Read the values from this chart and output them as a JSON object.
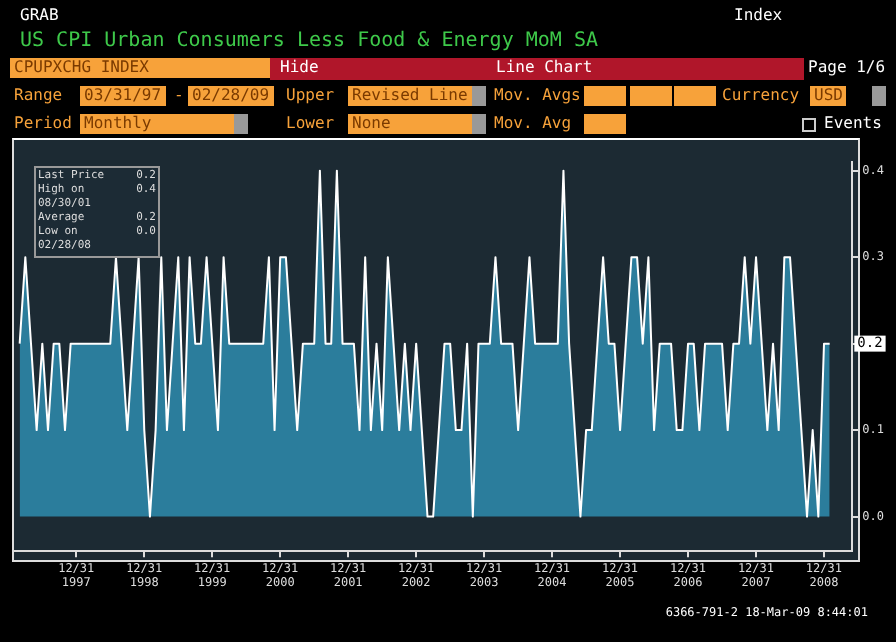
{
  "chart_data": {
    "type": "area",
    "title": "US CPI Urban Consumers Less Food & Energy MoM SA",
    "annotations": [
      "GRAB",
      "Index",
      "CPUPXCHG INDEX",
      "Hide",
      "Line Chart",
      "Page 1/6",
      "Range",
      "03/31/97",
      "-",
      "02/28/09",
      "Upper",
      "Revised Line",
      "Mov. Avgs",
      "Currency",
      "USD",
      "Period",
      "Monthly",
      "Lower",
      "None",
      "Mov. Avg",
      "Events",
      "Last Price",
      "0.2",
      "High on 08/30/01",
      "0.4",
      "Average",
      "0.2",
      "Low on 02/28/08",
      "0.0",
      "6366-791-2 18-Mar-09 8:44:01",
      "0.2"
    ],
    "x": [
      "1997-03",
      "1997-04",
      "1997-05",
      "1997-06",
      "1997-07",
      "1997-08",
      "1997-09",
      "1997-10",
      "1997-11",
      "1997-12",
      "1998-01",
      "1998-02",
      "1998-03",
      "1998-04",
      "1998-05",
      "1998-06",
      "1998-07",
      "1998-08",
      "1998-09",
      "1998-10",
      "1998-11",
      "1998-12",
      "1999-01",
      "1999-02",
      "1999-03",
      "1999-04",
      "1999-05",
      "1999-06",
      "1999-07",
      "1999-08",
      "1999-09",
      "1999-10",
      "1999-11",
      "1999-12",
      "2000-01",
      "2000-02",
      "2000-03",
      "2000-04",
      "2000-05",
      "2000-06",
      "2000-07",
      "2000-08",
      "2000-09",
      "2000-10",
      "2000-11",
      "2000-12",
      "2001-01",
      "2001-02",
      "2001-03",
      "2001-04",
      "2001-05",
      "2001-06",
      "2001-07",
      "2001-08",
      "2001-09",
      "2001-10",
      "2001-11",
      "2001-12",
      "2002-01",
      "2002-02",
      "2002-03",
      "2002-04",
      "2002-05",
      "2002-06",
      "2002-07",
      "2002-08",
      "2002-09",
      "2002-10",
      "2002-11",
      "2002-12",
      "2003-01",
      "2003-02",
      "2003-03",
      "2003-04",
      "2003-05",
      "2003-06",
      "2003-07",
      "2003-08",
      "2003-09",
      "2003-10",
      "2003-11",
      "2003-12",
      "2004-01",
      "2004-02",
      "2004-03",
      "2004-04",
      "2004-05",
      "2004-06",
      "2004-07",
      "2004-08",
      "2004-09",
      "2004-10",
      "2004-11",
      "2004-12",
      "2005-01",
      "2005-02",
      "2005-03",
      "2005-04",
      "2005-05",
      "2005-06",
      "2005-07",
      "2005-08",
      "2005-09",
      "2005-10",
      "2005-11",
      "2005-12",
      "2006-01",
      "2006-02",
      "2006-03",
      "2006-04",
      "2006-05",
      "2006-06",
      "2006-07",
      "2006-08",
      "2006-09",
      "2006-10",
      "2006-11",
      "2006-12",
      "2007-01",
      "2007-02",
      "2007-03",
      "2007-04",
      "2007-05",
      "2007-06",
      "2007-07",
      "2007-08",
      "2007-09",
      "2007-10",
      "2007-11",
      "2007-12",
      "2008-01",
      "2008-02",
      "2008-03",
      "2008-04",
      "2008-05",
      "2008-06",
      "2008-07",
      "2008-08",
      "2008-09",
      "2008-10",
      "2008-11",
      "2008-12",
      "2009-01",
      "2009-02"
    ],
    "series": [
      {
        "color": "#2b7d9c",
        "values": [
          0.2,
          0.3,
          0.2,
          0.1,
          0.2,
          0.1,
          0.2,
          0.2,
          0.1,
          0.2,
          0.2,
          0.2,
          0.2,
          0.2,
          0.2,
          0.2,
          0.2,
          0.3,
          0.2,
          0.1,
          0.2,
          0.3,
          0.1,
          0.0,
          0.1,
          0.3,
          0.1,
          0.2,
          0.3,
          0.1,
          0.3,
          0.2,
          0.2,
          0.3,
          0.2,
          0.1,
          0.3,
          0.2,
          0.2,
          0.2,
          0.2,
          0.2,
          0.2,
          0.2,
          0.3,
          0.1,
          0.3,
          0.3,
          0.2,
          0.1,
          0.2,
          0.2,
          0.2,
          0.4,
          0.2,
          0.2,
          0.4,
          0.2,
          0.2,
          0.2,
          0.1,
          0.3,
          0.1,
          0.2,
          0.1,
          0.3,
          0.2,
          0.1,
          0.2,
          0.1,
          0.2,
          0.1,
          0.0,
          0.0,
          0.1,
          0.2,
          0.2,
          0.1,
          0.1,
          0.2,
          0.0,
          0.2,
          0.2,
          0.2,
          0.3,
          0.2,
          0.2,
          0.2,
          0.1,
          0.2,
          0.3,
          0.2,
          0.2,
          0.2,
          0.2,
          0.2,
          0.4,
          0.2,
          0.1,
          0.0,
          0.1,
          0.1,
          0.2,
          0.3,
          0.2,
          0.2,
          0.1,
          0.2,
          0.3,
          0.3,
          0.2,
          0.3,
          0.1,
          0.2,
          0.2,
          0.2,
          0.1,
          0.1,
          0.2,
          0.2,
          0.1,
          0.2,
          0.2,
          0.2,
          0.2,
          0.1,
          0.2,
          0.2,
          0.3,
          0.2,
          0.3,
          0.2,
          0.1,
          0.2,
          0.1,
          0.3,
          0.3,
          0.2,
          0.1,
          0.0,
          0.1,
          0.0,
          0.2,
          0.2
        ]
      }
    ],
    "xlim": [
      "1997-02",
      "2009-06"
    ],
    "xticks": [
      {
        "value": "1997-12-31",
        "label": "12/31\n1997"
      },
      {
        "value": "1998-12-31",
        "label": "12/31\n1998"
      },
      {
        "value": "1999-12-31",
        "label": "12/31\n1999"
      },
      {
        "value": "2000-12-31",
        "label": "12/31\n2000"
      },
      {
        "value": "2001-12-31",
        "label": "12/31\n2001"
      },
      {
        "value": "2002-12-31",
        "label": "12/31\n2002"
      },
      {
        "value": "2003-12-31",
        "label": "12/31\n2003"
      },
      {
        "value": "2004-12-31",
        "label": "12/31\n2004"
      },
      {
        "value": "2005-12-31",
        "label": "12/31\n2005"
      },
      {
        "value": "2006-12-31",
        "label": "12/31\n2006"
      },
      {
        "value": "2007-12-31",
        "label": "12/31\n2007"
      },
      {
        "value": "2008-12-31",
        "label": "12/31\n2008"
      }
    ],
    "ylim": [
      -0.04,
      0.41
    ],
    "yticks": [
      {
        "value": 0,
        "label": "0.0"
      },
      {
        "value": 0.1,
        "label": "0.1"
      },
      {
        "value": 0.2,
        "label": null
      },
      {
        "value": 0.3,
        "label": "0.3"
      },
      {
        "value": 0.4,
        "label": "0.4"
      }
    ],
    "legend": false,
    "marker": "none",
    "line_style": "solid"
  }
}
